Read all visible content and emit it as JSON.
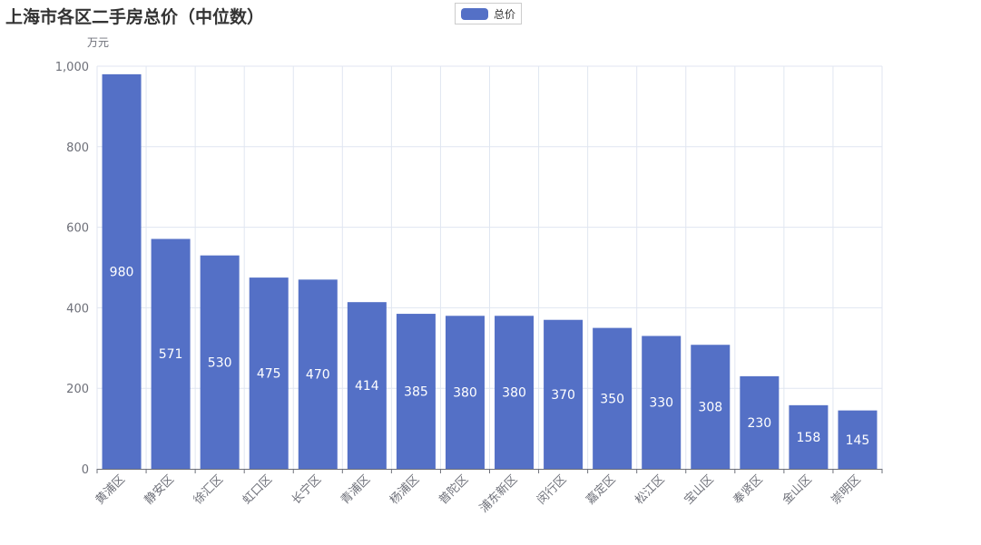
{
  "chart_data": {
    "type": "bar",
    "title": "上海市各区二手房总价（中位数）",
    "ylabel": "万元",
    "xlabel": "",
    "ylim": [
      0,
      1000
    ],
    "yticks": [
      "0",
      "200",
      "400",
      "600",
      "800",
      "1,000"
    ],
    "categories": [
      "黄浦区",
      "静安区",
      "徐汇区",
      "虹口区",
      "长宁区",
      "青浦区",
      "杨浦区",
      "普陀区",
      "浦东新区",
      "闵行区",
      "嘉定区",
      "松江区",
      "宝山区",
      "奉贤区",
      "金山区",
      "崇明区"
    ],
    "series": [
      {
        "name": "总价",
        "values": [
          980,
          571,
          530,
          475,
          470,
          414,
          385,
          380,
          380,
          370,
          350,
          330,
          308,
          230,
          158,
          145
        ]
      }
    ],
    "legend_position": "top-center",
    "grid": true,
    "data_labels": "inside-center",
    "colors": {
      "bar": "#5470c6",
      "grid": "#e0e6f1",
      "axis": "#6e7079"
    }
  }
}
